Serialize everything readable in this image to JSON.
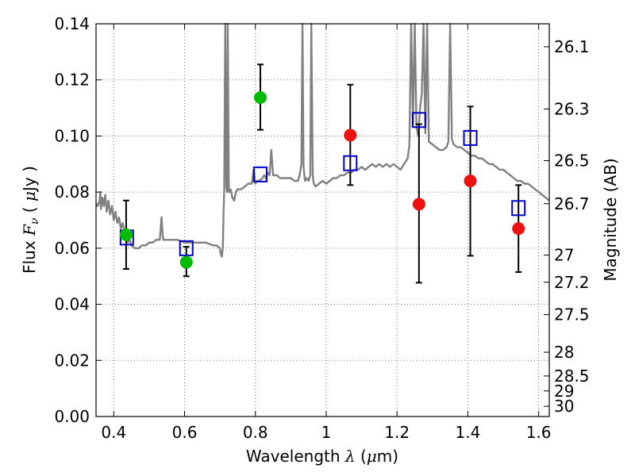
{
  "chart_data": {
    "type": "scatter",
    "xlabel": "Wavelength",
    "xlabel_symbol": "λ",
    "xlabel_unit_open": "(",
    "xlabel_unit_mu": "μ",
    "xlabel_unit_rest": "m)",
    "ylabel_left_prefix": "Flux",
    "ylabel_left_symbol": "F",
    "ylabel_left_subscript": "ν",
    "ylabel_left_unit_open": "(",
    "ylabel_left_unit_mu": "μ",
    "ylabel_left_unit_rest": "Jy",
    "ylabel_left_unit_close": ")",
    "ylabel_right": "Magnitude (AB)",
    "xlim": [
      0.35,
      1.63
    ],
    "ylim": [
      0.0,
      0.14
    ],
    "grid": true,
    "x_ticks": [
      {
        "value": 0.4,
        "label": "0.4"
      },
      {
        "value": 0.6,
        "label": "0.6"
      },
      {
        "value": 0.8,
        "label": "0.8"
      },
      {
        "value": 1.0,
        "label": "1"
      },
      {
        "value": 1.2,
        "label": "1.2"
      },
      {
        "value": 1.4,
        "label": "1.4"
      },
      {
        "value": 1.6,
        "label": "1.6"
      }
    ],
    "y_ticks": [
      {
        "value": 0.0,
        "label": "0.00"
      },
      {
        "value": 0.02,
        "label": "0.02"
      },
      {
        "value": 0.04,
        "label": "0.04"
      },
      {
        "value": 0.06,
        "label": "0.06"
      },
      {
        "value": 0.08,
        "label": "0.08"
      },
      {
        "value": 0.1,
        "label": "0.10"
      },
      {
        "value": 0.12,
        "label": "0.12"
      },
      {
        "value": 0.14,
        "label": "0.14"
      }
    ],
    "right_ticks": [
      {
        "mag": 26.1,
        "label": "26.1"
      },
      {
        "mag": 26.3,
        "label": "26.3"
      },
      {
        "mag": 26.5,
        "label": "26.5"
      },
      {
        "mag": 26.7,
        "label": "26.7"
      },
      {
        "mag": 27.0,
        "label": "27"
      },
      {
        "mag": 27.2,
        "label": "27.2"
      },
      {
        "mag": 27.5,
        "label": "27.5"
      },
      {
        "mag": 28.0,
        "label": "28"
      },
      {
        "mag": 28.5,
        "label": "28.5"
      },
      {
        "mag": 29.0,
        "label": "29"
      },
      {
        "mag": 30.0,
        "label": "30"
      }
    ],
    "colors": {
      "spectrum": "#808080",
      "green": "#00bb00",
      "red": "#ee1111",
      "model_box": "#0000cc",
      "errorbar": "#000000",
      "grid": "#555555"
    },
    "spectrum": [
      [
        0.35,
        0.076
      ],
      [
        0.355,
        0.075
      ],
      [
        0.36,
        0.077
      ],
      [
        0.362,
        0.08
      ],
      [
        0.364,
        0.074
      ],
      [
        0.368,
        0.078
      ],
      [
        0.372,
        0.075
      ],
      [
        0.376,
        0.079
      ],
      [
        0.38,
        0.073
      ],
      [
        0.385,
        0.077
      ],
      [
        0.39,
        0.072
      ],
      [
        0.395,
        0.075
      ],
      [
        0.4,
        0.07
      ],
      [
        0.405,
        0.073
      ],
      [
        0.41,
        0.069
      ],
      [
        0.415,
        0.071
      ],
      [
        0.42,
        0.067
      ],
      [
        0.425,
        0.069
      ],
      [
        0.43,
        0.066
      ],
      [
        0.435,
        0.064
      ],
      [
        0.44,
        0.062
      ],
      [
        0.445,
        0.063
      ],
      [
        0.45,
        0.061
      ],
      [
        0.46,
        0.06
      ],
      [
        0.47,
        0.06
      ],
      [
        0.48,
        0.061
      ],
      [
        0.49,
        0.061
      ],
      [
        0.5,
        0.062
      ],
      [
        0.51,
        0.062
      ],
      [
        0.52,
        0.063
      ],
      [
        0.53,
        0.063
      ],
      [
        0.532,
        0.066
      ],
      [
        0.535,
        0.071
      ],
      [
        0.538,
        0.065
      ],
      [
        0.54,
        0.063
      ],
      [
        0.56,
        0.063
      ],
      [
        0.58,
        0.063
      ],
      [
        0.6,
        0.062
      ],
      [
        0.62,
        0.062
      ],
      [
        0.64,
        0.062
      ],
      [
        0.66,
        0.062
      ],
      [
        0.68,
        0.061
      ],
      [
        0.69,
        0.061
      ],
      [
        0.7,
        0.06
      ],
      [
        0.702,
        0.058
      ],
      [
        0.705,
        0.057
      ],
      [
        0.708,
        0.06
      ],
      [
        0.71,
        0.072
      ],
      [
        0.712,
        0.081
      ],
      [
        0.715,
        0.14
      ],
      [
        0.718,
        0.082
      ],
      [
        0.72,
        0.08
      ],
      [
        0.722,
        0.14
      ],
      [
        0.725,
        0.08
      ],
      [
        0.73,
        0.081
      ],
      [
        0.735,
        0.078
      ],
      [
        0.74,
        0.077
      ],
      [
        0.745,
        0.08
      ],
      [
        0.75,
        0.081
      ],
      [
        0.76,
        0.081
      ],
      [
        0.77,
        0.082
      ],
      [
        0.78,
        0.083
      ],
      [
        0.79,
        0.083
      ],
      [
        0.795,
        0.088
      ],
      [
        0.8,
        0.083
      ],
      [
        0.805,
        0.084
      ],
      [
        0.81,
        0.084
      ],
      [
        0.82,
        0.085
      ],
      [
        0.825,
        0.086
      ],
      [
        0.83,
        0.085
      ],
      [
        0.835,
        0.087
      ],
      [
        0.84,
        0.086
      ],
      [
        0.845,
        0.095
      ],
      [
        0.85,
        0.086
      ],
      [
        0.86,
        0.086
      ],
      [
        0.87,
        0.085
      ],
      [
        0.88,
        0.085
      ],
      [
        0.89,
        0.085
      ],
      [
        0.9,
        0.085
      ],
      [
        0.91,
        0.084
      ],
      [
        0.92,
        0.084
      ],
      [
        0.925,
        0.086
      ],
      [
        0.93,
        0.09
      ],
      [
        0.933,
        0.14
      ],
      [
        0.936,
        0.089
      ],
      [
        0.94,
        0.084
      ],
      [
        0.945,
        0.085
      ],
      [
        0.95,
        0.084
      ],
      [
        0.955,
        0.086
      ],
      [
        0.958,
        0.14
      ],
      [
        0.962,
        0.086
      ],
      [
        0.965,
        0.083
      ],
      [
        0.97,
        0.082
      ],
      [
        0.98,
        0.083
      ],
      [
        0.99,
        0.084
      ],
      [
        1.0,
        0.083
      ],
      [
        1.01,
        0.084
      ],
      [
        1.02,
        0.085
      ],
      [
        1.03,
        0.085
      ],
      [
        1.04,
        0.086
      ],
      [
        1.05,
        0.086
      ],
      [
        1.06,
        0.087
      ],
      [
        1.07,
        0.087
      ],
      [
        1.08,
        0.088
      ],
      [
        1.09,
        0.088
      ],
      [
        1.1,
        0.089
      ],
      [
        1.11,
        0.088
      ],
      [
        1.12,
        0.089
      ],
      [
        1.13,
        0.09
      ],
      [
        1.14,
        0.089
      ],
      [
        1.15,
        0.09
      ],
      [
        1.16,
        0.089
      ],
      [
        1.17,
        0.09
      ],
      [
        1.18,
        0.089
      ],
      [
        1.19,
        0.09
      ],
      [
        1.2,
        0.089
      ],
      [
        1.21,
        0.088
      ],
      [
        1.22,
        0.09
      ],
      [
        1.23,
        0.092
      ],
      [
        1.235,
        0.097
      ],
      [
        1.24,
        0.14
      ],
      [
        1.245,
        0.104
      ],
      [
        1.25,
        0.14
      ],
      [
        1.255,
        0.103
      ],
      [
        1.26,
        0.1
      ],
      [
        1.265,
        0.11
      ],
      [
        1.27,
        0.115
      ],
      [
        1.275,
        0.14
      ],
      [
        1.28,
        0.101
      ],
      [
        1.285,
        0.14
      ],
      [
        1.29,
        0.098
      ],
      [
        1.3,
        0.097
      ],
      [
        1.31,
        0.096
      ],
      [
        1.32,
        0.095
      ],
      [
        1.33,
        0.095
      ],
      [
        1.34,
        0.096
      ],
      [
        1.345,
        0.098
      ],
      [
        1.35,
        0.14
      ],
      [
        1.355,
        0.099
      ],
      [
        1.36,
        0.097
      ],
      [
        1.37,
        0.096
      ],
      [
        1.38,
        0.096
      ],
      [
        1.39,
        0.095
      ],
      [
        1.4,
        0.094
      ],
      [
        1.41,
        0.093
      ],
      [
        1.42,
        0.093
      ],
      [
        1.43,
        0.092
      ],
      [
        1.44,
        0.092
      ],
      [
        1.45,
        0.091
      ],
      [
        1.46,
        0.09
      ],
      [
        1.47,
        0.09
      ],
      [
        1.48,
        0.089
      ],
      [
        1.49,
        0.088
      ],
      [
        1.5,
        0.088
      ],
      [
        1.51,
        0.087
      ],
      [
        1.52,
        0.086
      ],
      [
        1.53,
        0.085
      ],
      [
        1.54,
        0.084
      ],
      [
        1.55,
        0.084
      ],
      [
        1.56,
        0.083
      ],
      [
        1.57,
        0.083
      ],
      [
        1.58,
        0.082
      ],
      [
        1.59,
        0.081
      ],
      [
        1.6,
        0.08
      ],
      [
        1.61,
        0.079
      ],
      [
        1.62,
        0.078
      ],
      [
        1.63,
        0.077
      ]
    ],
    "observations_green": [
      {
        "x": 0.435,
        "y": 0.0648,
        "err_low": 0.0122,
        "err_high": 0.0122
      },
      {
        "x": 0.605,
        "y": 0.055,
        "err_low": 0.005,
        "err_high": 0.0055
      },
      {
        "x": 0.814,
        "y": 0.1137,
        "err_low": 0.0115,
        "err_high": 0.0118
      }
    ],
    "observations_red": [
      {
        "x": 1.068,
        "y": 0.1003,
        "err_low": 0.0178,
        "err_high": 0.018
      },
      {
        "x": 1.262,
        "y": 0.0757,
        "err_low": 0.028,
        "err_high": 0.0285
      },
      {
        "x": 1.407,
        "y": 0.084,
        "err_low": 0.0267,
        "err_high": 0.0265
      },
      {
        "x": 1.543,
        "y": 0.067,
        "err_low": 0.0155,
        "err_high": 0.0155
      }
    ],
    "model_points": [
      {
        "x": 0.437,
        "y": 0.0638
      },
      {
        "x": 0.605,
        "y": 0.06
      },
      {
        "x": 0.814,
        "y": 0.0863
      },
      {
        "x": 1.068,
        "y": 0.0903
      },
      {
        "x": 1.262,
        "y": 0.1057
      },
      {
        "x": 1.407,
        "y": 0.0993
      },
      {
        "x": 1.543,
        "y": 0.0743
      }
    ]
  }
}
